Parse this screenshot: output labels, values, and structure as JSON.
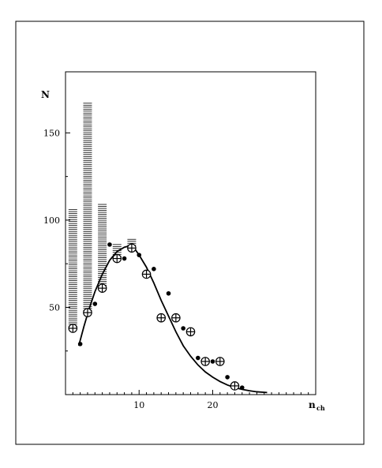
{
  "chart_data": {
    "type": "scatter",
    "title": "",
    "xlabel": "n",
    "xlabel_subscript": "ch",
    "ylabel": "N",
    "xlim": [
      0,
      34
    ],
    "ylim": [
      0,
      185
    ],
    "x_ticks": [
      10,
      20
    ],
    "x_tick_labels": [
      "10",
      "20"
    ],
    "x_minor_ticks": [
      1,
      2,
      3,
      4,
      5,
      6,
      7,
      8,
      9,
      11,
      12,
      13,
      14,
      15,
      16,
      17,
      18,
      19,
      21,
      22,
      23,
      24,
      25,
      26,
      27,
      28,
      29,
      30,
      31,
      32,
      33
    ],
    "y_ticks": [
      50,
      100,
      150
    ],
    "y_tick_labels": [
      "50",
      "100",
      "150"
    ],
    "y_minor_ticks": [
      25,
      75,
      125
    ],
    "grid": false,
    "series": [
      {
        "marker": "circle-plus",
        "x": [
          1,
          3,
          5,
          7,
          9,
          11,
          13,
          15,
          17,
          19,
          21,
          23
        ],
        "y": [
          38,
          47,
          61,
          78,
          84,
          69,
          44,
          44,
          36,
          19,
          19,
          5
        ],
        "error_band_top": [
          106,
          167,
          109,
          86,
          89,
          null,
          null,
          null,
          null,
          null,
          null,
          null
        ]
      },
      {
        "marker": "dot",
        "x": [
          2,
          4,
          6,
          8,
          10,
          12,
          14,
          16,
          18,
          20,
          22,
          24
        ],
        "y": [
          29,
          52,
          86,
          78,
          80,
          72,
          58,
          38,
          21,
          19,
          10,
          4
        ]
      },
      {
        "marker": "line",
        "x": [
          1.8,
          2.5,
          3.2,
          4,
          5,
          6,
          7,
          8,
          8.5,
          9,
          9.5,
          10,
          11,
          12,
          13,
          14,
          15,
          16,
          17,
          18,
          19,
          20,
          21,
          22,
          23,
          24,
          25,
          26,
          27.4
        ],
        "y": [
          28,
          39,
          49,
          59,
          69,
          77,
          82,
          84.5,
          85,
          84.5,
          83,
          80,
          73,
          64,
          54,
          45,
          36,
          28,
          22,
          17,
          13,
          10,
          7.5,
          5.5,
          4,
          3,
          2.2,
          1.6,
          1.2
        ]
      }
    ]
  }
}
